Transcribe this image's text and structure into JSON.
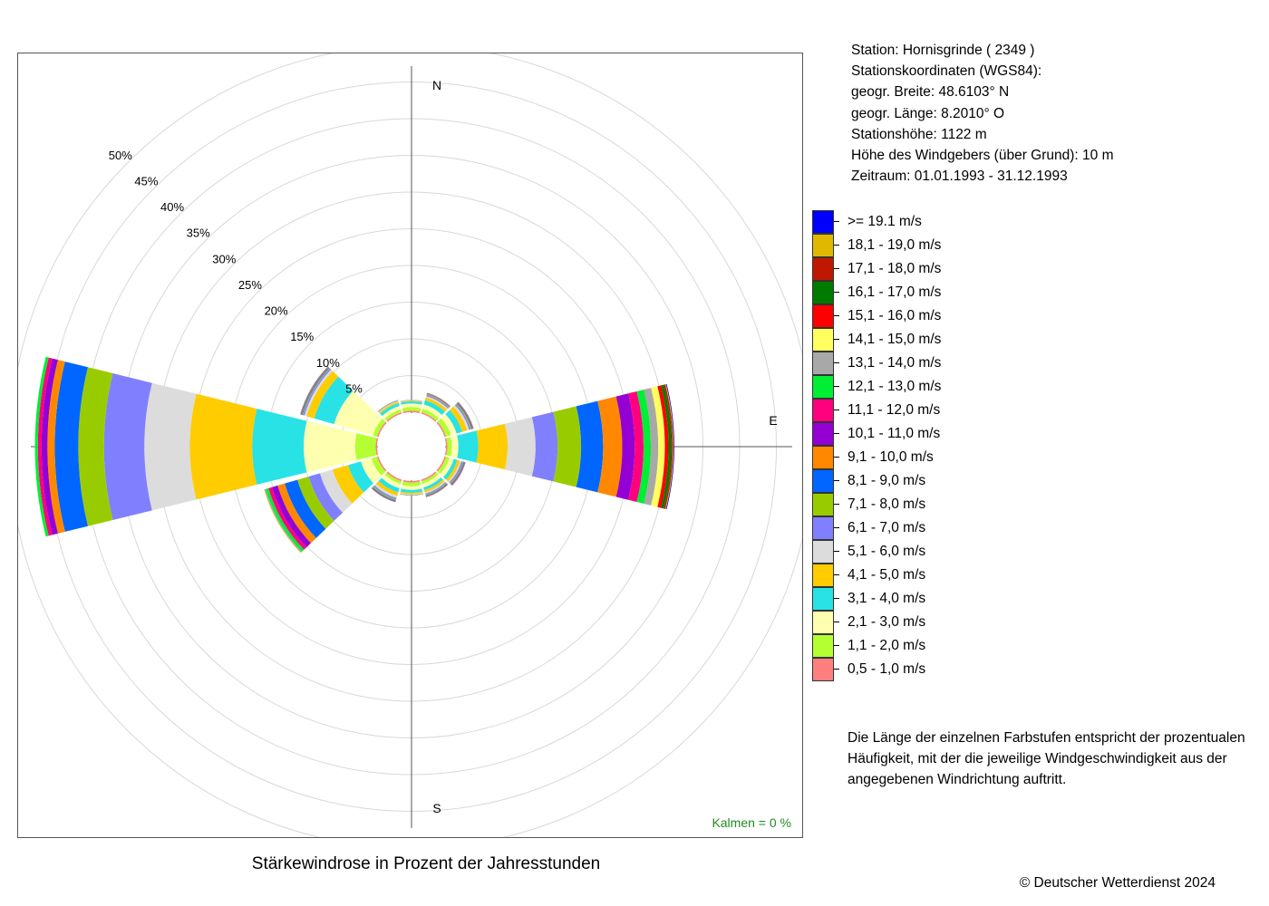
{
  "station": {
    "line1": "Station:  Hornisgrinde  ( 2349 )",
    "line2": "Stationskoordinaten (WGS84):",
    "line3": "geogr. Breite: 48.6103° N",
    "line4": "geogr. Länge:   8.2010° O",
    "line5": "Stationshöhe: 1122 m",
    "line6": "Höhe des Windgebers (über Grund): 10 m",
    "line7": "Zeitraum: 01.01.1993 - 31.12.1993"
  },
  "legend": [
    {
      "label": ">= 19.1 m/s",
      "color": "#0000FF"
    },
    {
      "label": "18,1 - 19,0 m/s",
      "color": "#E0B800"
    },
    {
      "label": "17,1 - 18,0 m/s",
      "color": "#C01800"
    },
    {
      "label": "16,1 - 17,0 m/s",
      "color": "#007A00"
    },
    {
      "label": "15,1 - 16,0 m/s",
      "color": "#FF0000"
    },
    {
      "label": "14,1 - 15,0 m/s",
      "color": "#FFFF60"
    },
    {
      "label": "13,1 - 14,0 m/s",
      "color": "#A8A8A8"
    },
    {
      "label": "12,1 - 13,0 m/s",
      "color": "#00EE33"
    },
    {
      "label": "11,1 - 12,0 m/s",
      "color": "#FF007F"
    },
    {
      "label": "10,1 - 11,0 m/s",
      "color": "#9400D3"
    },
    {
      "label": "9,1 - 10,0 m/s",
      "color": "#FF8800"
    },
    {
      "label": "8,1 - 9,0 m/s",
      "color": "#0066FF"
    },
    {
      "label": "7,1 - 8,0 m/s",
      "color": "#99CC00"
    },
    {
      "label": "6,1 - 7,0 m/s",
      "color": "#8080FF"
    },
    {
      "label": "5,1 - 6,0 m/s",
      "color": "#DCDCDC"
    },
    {
      "label": "4,1 - 5,0 m/s",
      "color": "#FFCC00"
    },
    {
      "label": "3,1 - 4,0 m/s",
      "color": "#28E2E6"
    },
    {
      "label": "2,1 - 3,0 m/s",
      "color": "#FFFFB0"
    },
    {
      "label": "1,1 - 2,0 m/s",
      "color": "#B4FF32"
    },
    {
      "label": "0,5 - 1,0 m/s",
      "color": "#FF7F7F"
    }
  ],
  "explanation": "Die Länge der einzelnen Farbstufen entspricht der prozentualen Häufigkeit, mit der die jeweilige Windgeschwindigkeit aus der angegebenen Windrichtung auftritt.",
  "caption": "Stärkewindrose in Prozent der Jahresstunden",
  "copyright": "© Deutscher Wetterdienst  2024",
  "calm": "Kalmen  =  0 %",
  "chart_data": {
    "type": "windrose",
    "title": "Stärkewindrose in Prozent der Jahresstunden",
    "unit": "%",
    "radial_ticks": [
      "5%",
      "10%",
      "15%",
      "20%",
      "25%",
      "30%",
      "35%",
      "40%",
      "45%",
      "50%"
    ],
    "radial_tick_values": [
      5,
      10,
      15,
      20,
      25,
      30,
      35,
      40,
      45,
      50
    ],
    "direction_labels": [
      "N",
      "E",
      "S"
    ],
    "sector_width_deg": 30,
    "speed_classes": [
      "0,5 - 1,0 m/s",
      "1,1 - 2,0 m/s",
      "2,1 - 3,0 m/s",
      "3,1 - 4,0 m/s",
      "4,1 - 5,0 m/s",
      "5,1 - 6,0 m/s",
      "6,1 - 7,0 m/s",
      "7,1 - 8,0 m/s",
      "8,1 - 9,0 m/s",
      "9,1 - 10,0 m/s",
      "10,1 - 11,0 m/s",
      "11,1 - 12,0 m/s",
      "12,1 - 13,0 m/s",
      "13,1 - 14,0 m/s",
      "14,1 - 15,0 m/s",
      "15,1 - 16,0 m/s",
      "16,1 - 17,0 m/s",
      "17,1 - 18,0 m/s",
      "18,1 - 19,0 m/s",
      ">= 19.1 m/s"
    ],
    "sectors": [
      {
        "direction_deg": 0,
        "values": [
          0.2,
          0.5,
          0.5,
          0.3,
          0.1,
          0.05,
          0.05,
          0,
          0,
          0,
          0,
          0,
          0,
          0,
          0,
          0,
          0,
          0,
          0,
          0
        ]
      },
      {
        "direction_deg": 30,
        "values": [
          0.2,
          0.5,
          0.6,
          0.6,
          0.4,
          0.2,
          0.15,
          0.1,
          0.05,
          0.05,
          0.05,
          0.03,
          0.03,
          0.02,
          0,
          0,
          0,
          0,
          0,
          0
        ]
      },
      {
        "direction_deg": 60,
        "values": [
          0.2,
          0.7,
          0.8,
          0.8,
          0.7,
          0.3,
          0.2,
          0.15,
          0.1,
          0.05,
          0.05,
          0.05,
          0.03,
          0.02,
          0.02,
          0,
          0,
          0,
          0,
          0
        ]
      },
      {
        "direction_deg": 90,
        "values": [
          0.2,
          0.6,
          0.9,
          2.7,
          4.0,
          3.8,
          3.0,
          3.2,
          3.0,
          2.6,
          1.7,
          1.2,
          1.0,
          1.0,
          0.9,
          0.5,
          0.4,
          0.2,
          0.1,
          0.1
        ]
      },
      {
        "direction_deg": 120,
        "values": [
          0.2,
          0.5,
          0.6,
          0.5,
          0.4,
          0.2,
          0.2,
          0.1,
          0.1,
          0.05,
          0.05,
          0.05,
          0.03,
          0.02,
          0,
          0,
          0,
          0,
          0,
          0
        ]
      },
      {
        "direction_deg": 150,
        "values": [
          0.2,
          0.4,
          0.5,
          0.4,
          0.3,
          0.2,
          0.15,
          0.1,
          0.1,
          0.05,
          0.05,
          0.03,
          0.02,
          0,
          0,
          0,
          0,
          0,
          0,
          0
        ]
      },
      {
        "direction_deg": 180,
        "values": [
          0.2,
          0.5,
          0.5,
          0.4,
          0.2,
          0.1,
          0.05,
          0.05,
          0,
          0,
          0,
          0,
          0,
          0,
          0,
          0,
          0,
          0,
          0,
          0
        ]
      },
      {
        "direction_deg": 210,
        "values": [
          0.2,
          0.4,
          0.6,
          0.6,
          0.5,
          0.3,
          0.2,
          0.15,
          0.1,
          0.05,
          0.05,
          0.03,
          0.02,
          0,
          0,
          0,
          0,
          0,
          0,
          0
        ]
      },
      {
        "direction_deg": 240,
        "values": [
          0.2,
          0.8,
          1.5,
          1.8,
          2.2,
          1.8,
          1.6,
          1.6,
          1.8,
          1.0,
          0.8,
          0.5,
          0.4,
          0.2,
          0.1,
          0,
          0,
          0,
          0,
          0
        ]
      },
      {
        "direction_deg": 270,
        "values": [
          0.2,
          2.8,
          7.0,
          7.0,
          8.5,
          6.2,
          5.5,
          3.5,
          3.2,
          1.0,
          0.8,
          0.5,
          0.4,
          0,
          0,
          0,
          0,
          0,
          0,
          0
        ]
      },
      {
        "direction_deg": 300,
        "values": [
          0.2,
          0.6,
          5.5,
          2.8,
          1.1,
          0.3,
          0.2,
          0.1,
          0.1,
          0.05,
          0.05,
          0.05,
          0.05,
          0.03,
          0,
          0,
          0,
          0,
          0,
          0
        ]
      },
      {
        "direction_deg": 330,
        "values": [
          0.2,
          0.4,
          0.5,
          0.4,
          0.2,
          0.1,
          0.05,
          0.05,
          0.03,
          0.02,
          0,
          0,
          0,
          0,
          0,
          0,
          0,
          0,
          0,
          0
        ]
      }
    ],
    "calm_percent": 0
  }
}
